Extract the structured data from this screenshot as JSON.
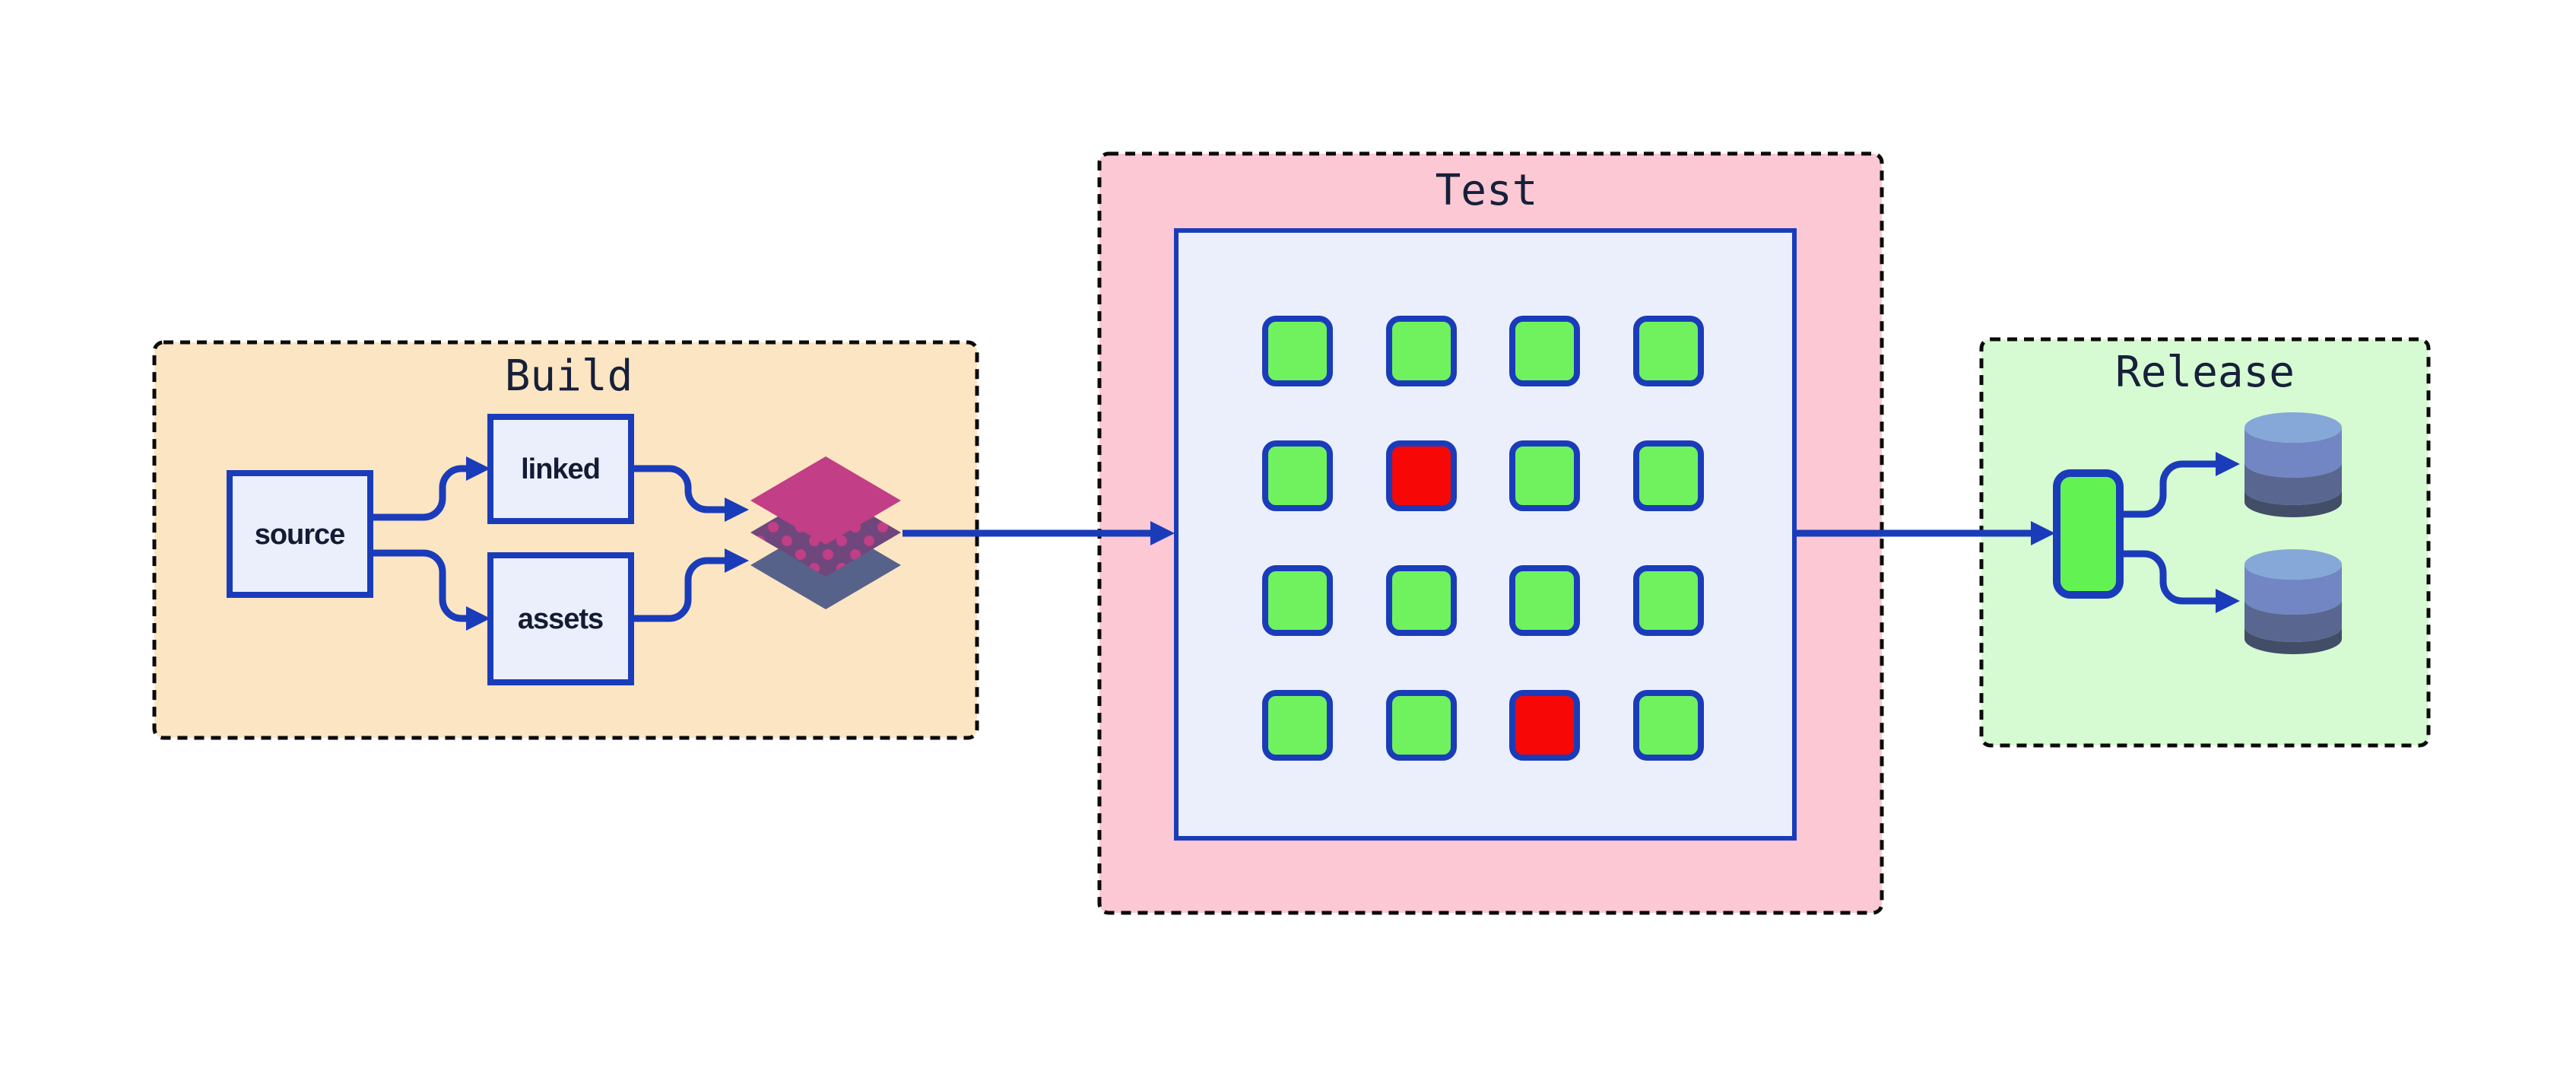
{
  "build": {
    "title": "Build",
    "nodes": [
      {
        "id": "source",
        "label": "source"
      },
      {
        "id": "linked",
        "label": "linked"
      },
      {
        "id": "assets",
        "label": "assets"
      }
    ],
    "artifact_icon": "layers-icon"
  },
  "test": {
    "title": "Test",
    "grid_rows": 4,
    "grid_cols": 4,
    "grid": [
      "pass",
      "pass",
      "pass",
      "pass",
      "pass",
      "fail",
      "pass",
      "pass",
      "pass",
      "pass",
      "pass",
      "pass",
      "pass",
      "pass",
      "fail",
      "pass"
    ]
  },
  "release": {
    "title": "Release",
    "artifact_icon": "package-icon",
    "target_icons": [
      "database-icon",
      "database-icon"
    ]
  },
  "colors": {
    "build_fill": "#fce5c2",
    "test_fill": "#fcc8d3",
    "release_fill": "#d6fbd2",
    "node_fill": "#ebeffb",
    "edge_blue": "#1a3cba",
    "title_navy": "#16203a",
    "test_pass": "#6ff25e",
    "test_fail": "#f80707",
    "release_green": "#62f353",
    "layer_magenta": "#c23e86",
    "layer_purple": "#6f477c",
    "layer_dot": "#c23e86",
    "layer_slate": "#566289",
    "db_top": "#85a8d8",
    "db_upper": "#7286c4",
    "db_mid": "#596790",
    "db_dark": "#424d68",
    "section_border": "#0b0b0b"
  }
}
